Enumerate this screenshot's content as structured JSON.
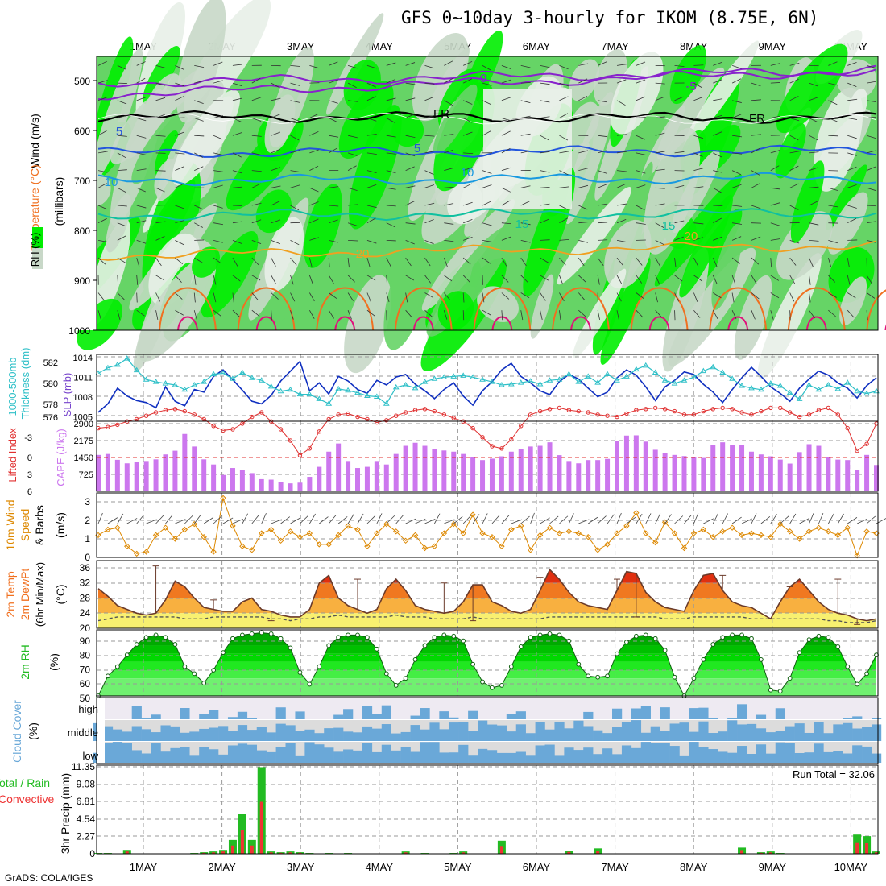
{
  "title": "GFS 0~10day 3-hourly for IKOM (8.75E, 6N)",
  "footer": "GrADS: COLA/IGES",
  "date_labels": [
    "1MAY",
    "2MAY",
    "3MAY",
    "4MAY",
    "5MAY",
    "6MAY",
    "7MAY",
    "8MAY",
    "9MAY",
    "10MAY"
  ],
  "colors": {
    "rh_dark": "#00ee00",
    "rh_mid": "#66d466",
    "rh_light": "#c8d8c8",
    "rh_pale": "#e8efe8",
    "temp_purple": "#8822cc",
    "temp_blue": "#2255dd",
    "temp_cyan": "#1899e0",
    "temp_teal": "#10c0a0",
    "temp_orange": "#f0a020",
    "temp_deeporange": "#f07020",
    "temp_magenta": "#e0107a",
    "slp": "#1030c0",
    "thickness": "#30c0c8",
    "cape": "#cc77ee",
    "lifted": "#e03030",
    "wind": "#dd8800",
    "rain_total": "#22bb22",
    "rain_conv": "#ee3333",
    "cloud": "#6aa8d8"
  },
  "chart_data": [
    {
      "type": "heatmap",
      "panel": "upper-air",
      "ylabel": "(millibars)",
      "legend_labels": [
        "RH (%)",
        "Temperature (°C)",
        "Wind (m/s)"
      ],
      "y_ticks": [
        500,
        600,
        700,
        800,
        900,
        1000
      ],
      "ylim": [
        1000,
        450
      ],
      "isotherm_labels": [
        "0",
        "-5",
        "FR",
        "FR",
        "5",
        "5",
        "10",
        "10",
        "15",
        "15",
        "20",
        "20"
      ]
    },
    {
      "type": "line",
      "panel": "slp-thickness",
      "ylabel_left": "1000-500mb Thickness (dm)",
      "ylabel_right": "SLP (mb)",
      "left_ticks": [
        "582",
        "580",
        "578",
        "576"
      ],
      "right_ticks": [
        "1014",
        "1011",
        "1008",
        "1005"
      ],
      "slp": [
        1005.5,
        1006.8,
        1009.2,
        1008.0,
        1007.3,
        1007.0,
        1006.2,
        1009.4,
        1007.2,
        1006.5,
        1009.0,
        1008.6,
        1011.0,
        1012.0,
        1010.5,
        1008.9,
        1007.2,
        1006.8,
        1008.1,
        1010.3,
        1011.8,
        1013.3,
        1008.8,
        1010.0,
        1008.3,
        1011.0,
        1010.3,
        1009.0,
        1008.4,
        1010.4,
        1009.7,
        1010.9,
        1011.3,
        1009.8,
        1008.8,
        1007.6,
        1009.0,
        1010.0,
        1008.0,
        1006.6,
        1008.8,
        1010.2,
        1012.0,
        1013.0,
        1011.0,
        1010.0,
        1008.8,
        1008.2,
        1010.2,
        1011.3,
        1010.6,
        1009.2,
        1007.9,
        1008.6,
        1010.8,
        1012.0,
        1011.2,
        1009.4,
        1007.3,
        1009.4,
        1010.4,
        1011.7,
        1011.3,
        1009.8,
        1008.6,
        1007.0,
        1009.0,
        1010.8,
        1012.4,
        1011.0,
        1009.4,
        1008.4,
        1007.2,
        1009.2,
        1010.6,
        1011.8,
        1011.2,
        1010.0,
        1009.2,
        1007.7,
        1009.6,
        1010.8
      ],
      "thickness": [
        580.5,
        581.2,
        581.6,
        582.4,
        580.9,
        579.7,
        579.4,
        579.2,
        579.0,
        578.4,
        579.0,
        579.4,
        580.4,
        580.5,
        579.8,
        580.6,
        579.9,
        579.6,
        578.8,
        578.2,
        578.4,
        577.8,
        577.8,
        577.2,
        576.6,
        578.5,
        578.3,
        578.0,
        577.6,
        577.5,
        576.6,
        578.7,
        579.0,
        578.6,
        579.4,
        579.8,
        580.0,
        580.1,
        580.2,
        580.0,
        579.7,
        579.4,
        579.0,
        579.1,
        579.3,
        579.5,
        579.1,
        579.6,
        579.7,
        580.4,
        579.4,
        580.1,
        579.3,
        580.4,
        579.6,
        580.1,
        581.0,
        581.5,
        580.6,
        579.6,
        579.2,
        579.6,
        580.0,
        580.8,
        581.3,
        580.6,
        579.8,
        578.9,
        578.6,
        578.4,
        579.2,
        578.9,
        578.0,
        577.2,
        579.0,
        578.4,
        579.0,
        578.5,
        579.3,
        578.2,
        577.9,
        578.2
      ]
    },
    {
      "type": "bar",
      "panel": "cape-lifted",
      "ylabel_left": "Lifted Index",
      "ylabel_right": "CAPE (J/kg)",
      "left_ticks": [
        "-3",
        "0",
        "3",
        "6"
      ],
      "right_ticks": [
        "2900",
        "2175",
        "1450",
        "725"
      ],
      "cape": [
        1560,
        1600,
        1350,
        1200,
        1250,
        1300,
        1370,
        1580,
        1740,
        2460,
        1920,
        1370,
        1150,
        700,
        1000,
        900,
        780,
        520,
        500,
        390,
        340,
        370,
        620,
        1050,
        1700,
        2050,
        1300,
        1000,
        1050,
        1300,
        1150,
        1600,
        1950,
        2080,
        1950,
        1820,
        1750,
        1700,
        1600,
        1450,
        1340,
        1400,
        1500,
        1700,
        1820,
        1920,
        1950,
        2100,
        1550,
        1300,
        1200,
        1340,
        1340,
        1390,
        2160,
        2390,
        2400,
        2130,
        1780,
        1630,
        1560,
        1510,
        1480,
        1430,
        2000,
        2100,
        2000,
        1980,
        1700,
        1580,
        1500,
        1360,
        1190,
        1680,
        2020,
        1950,
        1470,
        1360,
        1340,
        920,
        1560,
        1130
      ],
      "lifted": [
        -2.6,
        -2.7,
        -2.9,
        -3.2,
        -3.4,
        -3.7,
        -4.0,
        -4.2,
        -4.3,
        -4.1,
        -3.8,
        -3.4,
        -2.8,
        -2.4,
        -2.5,
        -3.0,
        -3.6,
        -4.0,
        -3.2,
        -2.5,
        -1.5,
        -0.2,
        -0.8,
        -2.3,
        -3.4,
        -3.8,
        -3.9,
        -3.6,
        -3.4,
        -3.1,
        -3.3,
        -3.7,
        -4.0,
        -4.2,
        -4.3,
        -4.1,
        -3.8,
        -3.5,
        -3.2,
        -2.6,
        -1.8,
        -1.0,
        -0.8,
        -1.6,
        -2.8,
        -3.8,
        -4.1,
        -4.3,
        -4.4,
        -4.2,
        -4.1,
        -4.0,
        -3.8,
        -3.7,
        -3.6,
        -3.9,
        -4.2,
        -4.3,
        -4.4,
        -4.3,
        -4.1,
        -3.8,
        -3.8,
        -4.1,
        -4.3,
        -4.4,
        -4.3,
        -4.0,
        -3.8,
        -4.1,
        -4.4,
        -4.4,
        -4.0,
        -3.6,
        -3.8,
        -4.2,
        -4.4,
        -3.8,
        -2.6,
        -0.6,
        -1.2,
        -3.0
      ]
    },
    {
      "type": "line",
      "panel": "10m-wind",
      "ylabel": "10m Wind Speed & Barbs (m/s)",
      "y_ticks": [
        "0",
        "1",
        "2",
        "3"
      ],
      "speed": [
        1.2,
        1.5,
        1.6,
        0.6,
        0.2,
        0.3,
        1.2,
        1.6,
        1.0,
        1.5,
        1.8,
        1.1,
        0.3,
        3.2,
        1.7,
        0.6,
        0.4,
        1.3,
        1.5,
        0.9,
        1.4,
        1.1,
        1.3,
        0.7,
        0.7,
        1.2,
        1.7,
        1.5,
        0.6,
        1.3,
        1.8,
        1.4,
        0.9,
        1.2,
        0.5,
        0.6,
        1.3,
        1.8,
        1.3,
        2.3,
        1.3,
        1.1,
        0.6,
        1.5,
        1.7,
        0.4,
        1.2,
        1.6,
        1.3,
        1.4,
        1.3,
        1.1,
        0.4,
        0.7,
        1.3,
        1.7,
        2.4,
        1.3,
        0.8,
        1.9,
        1.3,
        0.5,
        1.3,
        1.5,
        1.1,
        1.4,
        1.6,
        1.2,
        1.3,
        1.2,
        1.1,
        1.8,
        1.4,
        1.0,
        1.4,
        1.6,
        1.4,
        1.2,
        1.6,
        0.1,
        1.4,
        1.3
      ]
    },
    {
      "type": "area",
      "panel": "2m-temp",
      "ylabel": "2m Temp 2m DewPt (6hr Min/Max) (°C)",
      "y_ticks": [
        "36",
        "32",
        "28",
        "24",
        "20"
      ],
      "temp": [
        30.5,
        28.5,
        26,
        25,
        24,
        23.5,
        24,
        27.5,
        32.5,
        31,
        28,
        25.5,
        25,
        24.5,
        24.5,
        27,
        28,
        25,
        24.5,
        23.5,
        23,
        23,
        25,
        32,
        34,
        28,
        26,
        25,
        24,
        25,
        30.5,
        33,
        30,
        26,
        25,
        24.5,
        24,
        24.5,
        27,
        31.5,
        31.5,
        27,
        26,
        24.5,
        24,
        25,
        30,
        35.5,
        33,
        29.5,
        27,
        26,
        25.5,
        25,
        30,
        35,
        34.5,
        29.5,
        27,
        25.5,
        25,
        24.5,
        30,
        34,
        34.5,
        30,
        27,
        26,
        25.5,
        24,
        22.5,
        27,
        31,
        33,
        30,
        27,
        25,
        24,
        23.5,
        22.5,
        22,
        22.5
      ],
      "dewpoint": [
        22,
        22.5,
        23,
        23,
        23,
        23,
        23,
        23,
        23,
        22.5,
        22.5,
        22.5,
        23,
        23,
        23,
        23,
        23,
        23,
        22.5,
        22.5,
        22,
        22.5,
        22.5,
        23,
        23,
        23.5,
        23,
        23,
        23,
        23,
        23,
        23.5,
        23,
        23,
        23,
        22.5,
        22.5,
        22.5,
        22.5,
        23,
        22.5,
        22.5,
        22.5,
        22.5,
        22.5,
        22.5,
        22.5,
        23,
        23,
        23,
        23,
        23,
        23,
        23,
        23,
        23,
        23,
        23,
        23,
        22.5,
        22.5,
        22.5,
        23,
        23,
        23,
        23,
        23,
        23,
        22.5,
        22.5,
        22.5,
        22.5,
        22.5,
        22.5,
        22.5,
        22.5,
        22,
        22,
        21.5,
        21.5,
        21.5,
        22
      ],
      "max_whiskers": [
        [
          6,
          36.5
        ],
        [
          12,
          27.5
        ],
        [
          27,
          33
        ],
        [
          36,
          32
        ],
        [
          46,
          33.5
        ],
        [
          54,
          33
        ],
        [
          65,
          34
        ],
        [
          72,
          31
        ],
        [
          77,
          33
        ]
      ],
      "min_whiskers": [
        [
          18,
          22
        ],
        [
          39,
          22
        ],
        [
          56,
          23
        ],
        [
          79,
          21
        ]
      ]
    },
    {
      "type": "area",
      "panel": "2m-rh",
      "ylabel": "2m RH (%)",
      "y_ticks": [
        "90",
        "80",
        "70",
        "60",
        "50"
      ],
      "rh": [
        43,
        60,
        68,
        78,
        87,
        93,
        95,
        93,
        87,
        68,
        62,
        54,
        65,
        80,
        92,
        95,
        96,
        97,
        96,
        92,
        84,
        63,
        53,
        68,
        86,
        93,
        95,
        95,
        93,
        83,
        62,
        52,
        58,
        74,
        86,
        93,
        95,
        94,
        90,
        70,
        55,
        50,
        52,
        68,
        85,
        93,
        95,
        96,
        95,
        90,
        70,
        60,
        59,
        60,
        79,
        89,
        94,
        95,
        92,
        82,
        59,
        43,
        58,
        74,
        87,
        93,
        95,
        95,
        92,
        74,
        48,
        47,
        58,
        80,
        91,
        94,
        93,
        85,
        68,
        53,
        62,
        78
      ]
    },
    {
      "type": "heatmap",
      "panel": "cloud-cover",
      "ylabel": "Cloud Cover (%)",
      "levels": [
        "high",
        "middle",
        "low"
      ]
    },
    {
      "type": "bar",
      "panel": "3hr-precip",
      "ylabel": "3hr Precip (mm)",
      "legend_labels": [
        "Total / Rain",
        "Convective"
      ],
      "y_ticks": [
        "11.35",
        "9.08",
        "6.81",
        "4.54",
        "2.27",
        "0"
      ],
      "annotation": "Run Total = 32.06",
      "total": [
        0.1,
        0.1,
        0,
        0.5,
        0,
        0,
        0,
        0,
        0,
        0,
        0.1,
        0.2,
        0.3,
        0.5,
        1.8,
        5.2,
        1.8,
        11.3,
        0.3,
        0.2,
        0.3,
        0.2,
        0.1,
        0,
        0.1,
        0,
        0.1,
        0,
        0,
        0,
        0,
        0,
        0.3,
        0,
        0.1,
        0,
        0,
        0.1,
        0.3,
        0,
        0,
        0,
        1.7,
        0,
        0,
        0,
        0,
        0,
        0,
        0.4,
        0,
        0,
        0.7,
        0,
        0,
        0,
        0,
        0,
        0,
        0,
        0,
        0,
        0,
        0,
        0,
        0,
        0,
        0.8,
        0,
        0.2,
        0.3,
        0.1,
        0,
        0,
        0,
        0,
        0,
        0,
        0,
        2.5,
        2.3,
        0.3
      ]
    }
  ]
}
